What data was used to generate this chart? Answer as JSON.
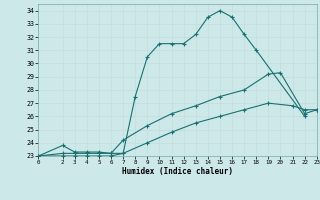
{
  "background_color": "#cce8e8",
  "grid_color": "#d4e8e8",
  "line_color": "#1a7070",
  "xlabel": "Humidex (Indice chaleur)",
  "ylim": [
    23,
    34.5
  ],
  "xlim": [
    0,
    23
  ],
  "yticks": [
    23,
    24,
    25,
    26,
    27,
    28,
    29,
    30,
    31,
    32,
    33,
    34
  ],
  "xticks": [
    0,
    2,
    3,
    4,
    5,
    6,
    7,
    8,
    9,
    10,
    11,
    12,
    13,
    14,
    15,
    16,
    17,
    18,
    19,
    20,
    21,
    22,
    23
  ],
  "line1_x": [
    0,
    2,
    3,
    4,
    5,
    6,
    7,
    8,
    9,
    10,
    11,
    12,
    13,
    14,
    15,
    16,
    17,
    18,
    22
  ],
  "line1_y": [
    23,
    23.8,
    23.3,
    23.3,
    23.3,
    23.2,
    23.2,
    27.5,
    30.5,
    31.5,
    31.5,
    31.5,
    32.2,
    33.5,
    34.0,
    33.5,
    32.2,
    31.0,
    26.0
  ],
  "line2_x": [
    0,
    2,
    3,
    4,
    5,
    6,
    7,
    9,
    11,
    13,
    15,
    17,
    19,
    20,
    22,
    23
  ],
  "line2_y": [
    23,
    23.2,
    23.2,
    23.2,
    23.2,
    23.2,
    24.2,
    25.3,
    26.2,
    26.8,
    27.5,
    28.0,
    29.2,
    29.3,
    26.2,
    26.5
  ],
  "line3_x": [
    0,
    2,
    3,
    4,
    5,
    6,
    7,
    9,
    11,
    13,
    15,
    17,
    19,
    21,
    22,
    23
  ],
  "line3_y": [
    23,
    23.0,
    23.0,
    23.0,
    23.0,
    23.0,
    23.2,
    24.0,
    24.8,
    25.5,
    26.0,
    26.5,
    27.0,
    26.8,
    26.5,
    26.5
  ]
}
